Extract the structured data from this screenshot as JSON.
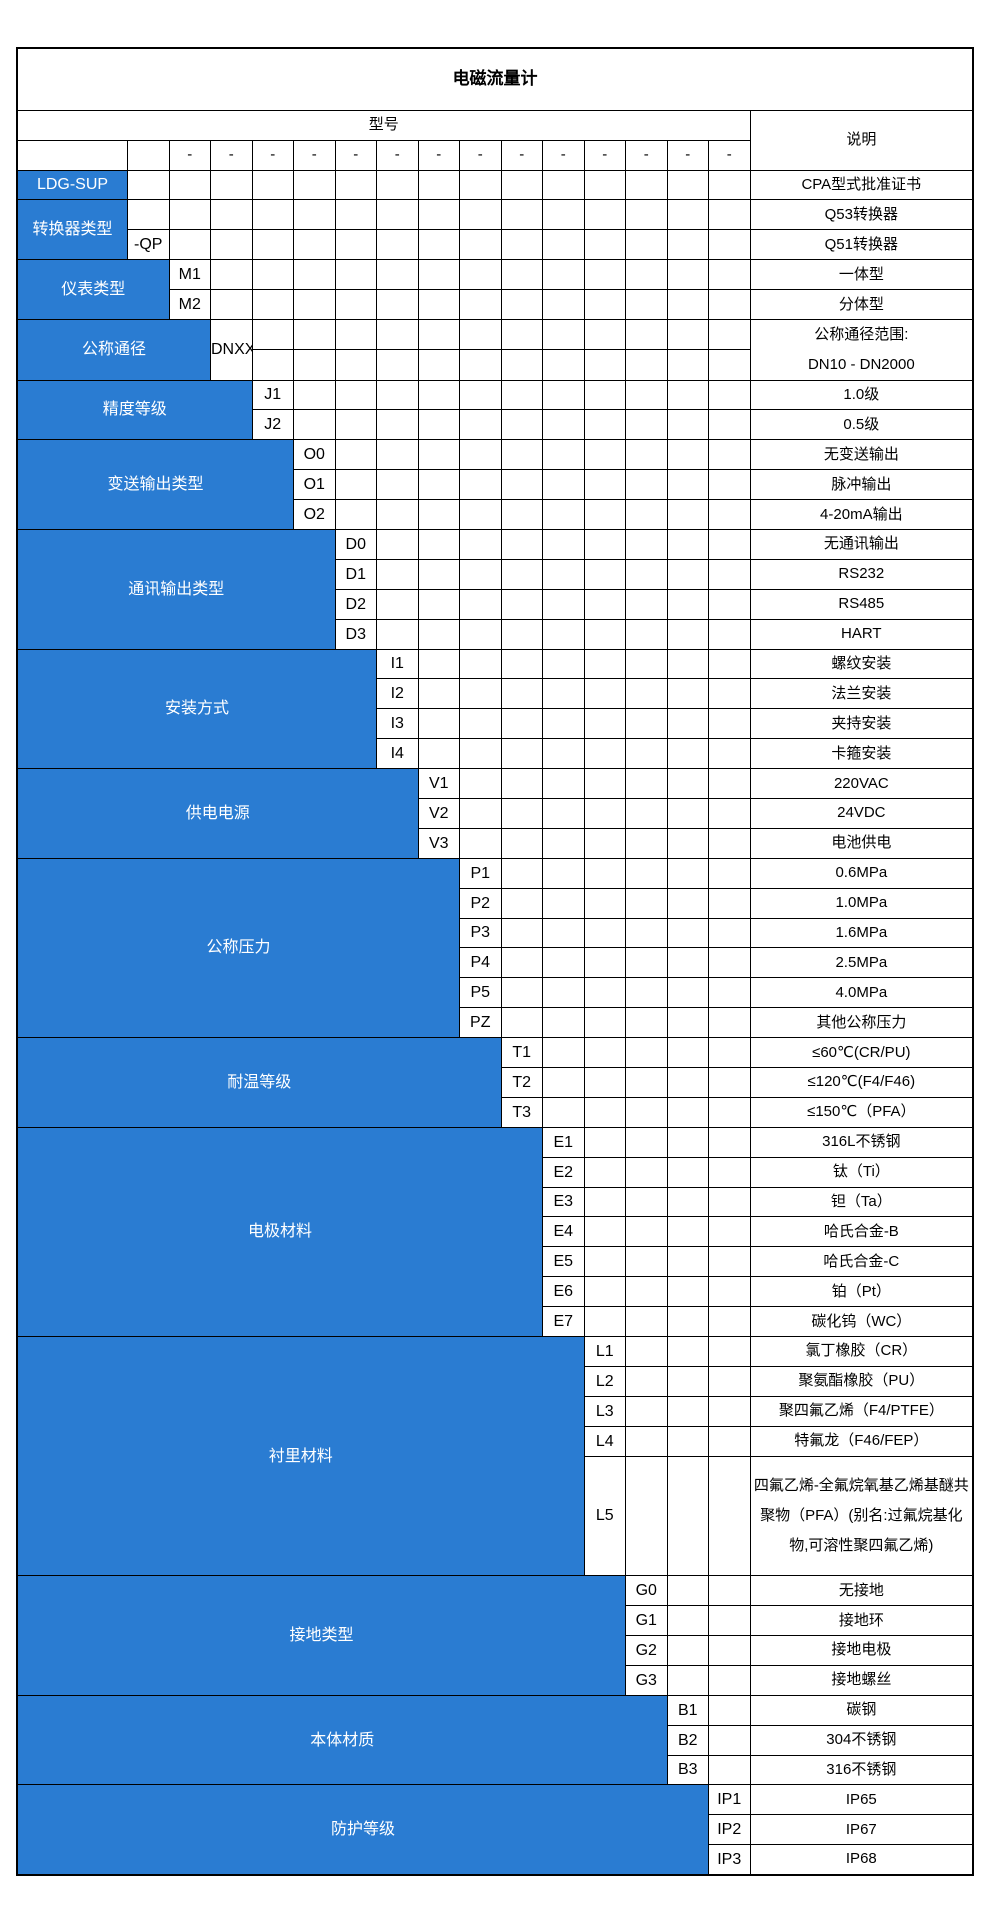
{
  "colors": {
    "category_blue": "#2a7cd2",
    "border": "#000000",
    "text": "#000000",
    "category_text": "#ffffff",
    "background": "#ffffff"
  },
  "table": {
    "title": "电磁流量计",
    "model_header": "型号",
    "desc_header": "说明",
    "dash": "-"
  },
  "blocks": [
    {
      "label": "LDG-SUP",
      "blue_cols": 1,
      "rows": [
        {
          "code": "",
          "desc": "CPA型式批准证书"
        }
      ]
    },
    {
      "label": "转换器类型",
      "blue_cols": 1,
      "rows": [
        {
          "code": "",
          "desc": "Q53转换器"
        },
        {
          "code": "-QP",
          "desc": "Q51转换器"
        }
      ]
    },
    {
      "label": "仪表类型",
      "blue_cols": 2,
      "rows": [
        {
          "code": "M1",
          "desc": "一体型"
        },
        {
          "code": "M2",
          "desc": "分体型"
        }
      ]
    },
    {
      "label": "公称通径",
      "blue_cols": 3,
      "merged_rows": 2,
      "rows": [
        {
          "code": "DNXX",
          "desc_lines": [
            "公称通径范围:",
            "DN10 - DN2000"
          ]
        }
      ]
    },
    {
      "label": "精度等级",
      "blue_cols": 4,
      "rows": [
        {
          "code": "J1",
          "desc": "1.0级"
        },
        {
          "code": "J2",
          "desc": "0.5级"
        }
      ]
    },
    {
      "label": "变送输出类型",
      "blue_cols": 5,
      "rows": [
        {
          "code": "O0",
          "desc": "无变送输出"
        },
        {
          "code": "O1",
          "desc": "脉冲输出"
        },
        {
          "code": "O2",
          "desc": "4-20mA输出"
        }
      ]
    },
    {
      "label": "通讯输出类型",
      "blue_cols": 6,
      "rows": [
        {
          "code": "D0",
          "desc": "无通讯输出"
        },
        {
          "code": "D1",
          "desc": "RS232"
        },
        {
          "code": "D2",
          "desc": "RS485"
        },
        {
          "code": "D3",
          "desc": "HART"
        }
      ]
    },
    {
      "label": "安装方式",
      "blue_cols": 7,
      "rows": [
        {
          "code": "I1",
          "desc": "螺纹安装"
        },
        {
          "code": "I2",
          "desc": "法兰安装"
        },
        {
          "code": "I3",
          "desc": "夹持安装"
        },
        {
          "code": "I4",
          "desc": "卡箍安装"
        }
      ]
    },
    {
      "label": "供电电源",
      "blue_cols": 8,
      "rows": [
        {
          "code": "V1",
          "desc": "220VAC"
        },
        {
          "code": "V2",
          "desc": "24VDC"
        },
        {
          "code": "V3",
          "desc": "电池供电"
        }
      ]
    },
    {
      "label": "公称压力",
      "blue_cols": 9,
      "rows": [
        {
          "code": "P1",
          "desc": "0.6MPa"
        },
        {
          "code": "P2",
          "desc": "1.0MPa"
        },
        {
          "code": "P3",
          "desc": "1.6MPa"
        },
        {
          "code": "P4",
          "desc": "2.5MPa"
        },
        {
          "code": "P5",
          "desc": "4.0MPa"
        },
        {
          "code": "PZ",
          "desc": "其他公称压力"
        }
      ]
    },
    {
      "label": "耐温等级",
      "blue_cols": 10,
      "rows": [
        {
          "code": "T1",
          "desc": "≤60℃(CR/PU)"
        },
        {
          "code": "T2",
          "desc": "≤120℃(F4/F46)"
        },
        {
          "code": "T3",
          "desc": "≤150℃（PFA）"
        }
      ]
    },
    {
      "label": "电极材料",
      "blue_cols": 11,
      "rows": [
        {
          "code": "E1",
          "desc": "316L不锈钢"
        },
        {
          "code": "E2",
          "desc": "钛（Ti）"
        },
        {
          "code": "E3",
          "desc": "钽（Ta）"
        },
        {
          "code": "E4",
          "desc": "哈氏合金-B"
        },
        {
          "code": "E5",
          "desc": "哈氏合金-C"
        },
        {
          "code": "E6",
          "desc": "铂（Pt）"
        },
        {
          "code": "E7",
          "desc": "碳化钨（WC）"
        }
      ]
    },
    {
      "label": "衬里材料",
      "blue_cols": 12,
      "rows": [
        {
          "code": "L1",
          "desc": "氯丁橡胶（CR）"
        },
        {
          "code": "L2",
          "desc": "聚氨酯橡胶（PU）"
        },
        {
          "code": "L3",
          "desc": "聚四氟乙烯（F4/PTFE）"
        },
        {
          "code": "L4",
          "desc": "特氟龙（F46/FEP）"
        },
        {
          "code": "L5",
          "desc": "四氟乙烯-全氟烷氧基乙烯基醚共聚物（PFA）(别名:过氟烷基化物,可溶性聚四氟乙烯)",
          "tall": true
        }
      ]
    },
    {
      "label": "接地类型",
      "blue_cols": 13,
      "rows": [
        {
          "code": "G0",
          "desc": "无接地"
        },
        {
          "code": "G1",
          "desc": "接地环"
        },
        {
          "code": "G2",
          "desc": "接地电极"
        },
        {
          "code": "G3",
          "desc": "接地螺丝"
        }
      ]
    },
    {
      "label": "本体材质",
      "blue_cols": 14,
      "rows": [
        {
          "code": "B1",
          "desc": "碳钢"
        },
        {
          "code": "B2",
          "desc": "304不锈钢"
        },
        {
          "code": "B3",
          "desc": "316不锈钢"
        }
      ]
    },
    {
      "label": "防护等级",
      "blue_cols": 15,
      "rows": [
        {
          "code": "IP1",
          "desc": "IP65"
        },
        {
          "code": "IP2",
          "desc": "IP67"
        },
        {
          "code": "IP3",
          "desc": "IP68"
        }
      ]
    }
  ]
}
